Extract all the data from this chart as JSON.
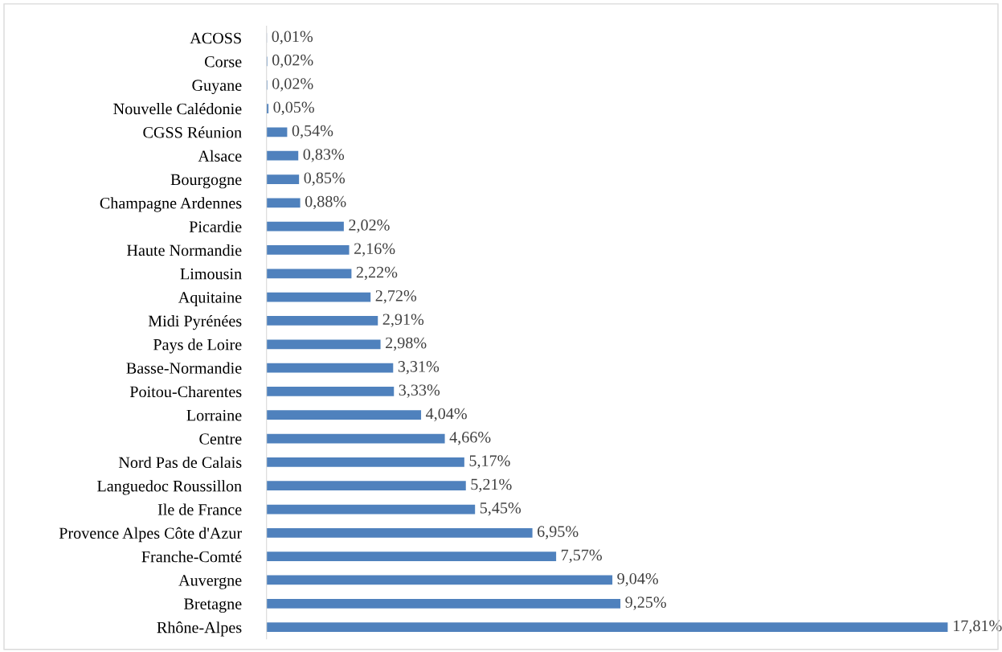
{
  "chart_data": {
    "type": "bar",
    "orientation": "horizontal",
    "color": "#4f81bd",
    "categories": [
      "ACOSS",
      "Corse",
      "Guyane",
      "Nouvelle Calédonie",
      "CGSS Réunion",
      "Alsace",
      "Bourgogne",
      "Champagne Ardennes",
      "Picardie",
      "Haute Normandie",
      "Limousin",
      "Aquitaine",
      "Midi Pyrénées",
      "Pays de Loire",
      "Basse-Normandie",
      "Poitou-Charentes",
      "Lorraine",
      "Centre",
      "Nord Pas de Calais",
      "Languedoc Roussillon",
      "Ile de France",
      "Provence Alpes Côte d'Azur",
      "Franche-Comté",
      "Auvergne",
      "Bretagne",
      "Rhône-Alpes"
    ],
    "values": [
      0.01,
      0.02,
      0.02,
      0.05,
      0.54,
      0.83,
      0.85,
      0.88,
      2.02,
      2.16,
      2.22,
      2.72,
      2.91,
      2.98,
      3.31,
      3.33,
      4.04,
      4.66,
      5.17,
      5.21,
      5.45,
      6.95,
      7.57,
      9.04,
      9.25,
      17.81
    ],
    "value_labels": [
      "0,01%",
      "0,02%",
      "0,02%",
      "0,05%",
      "0,54%",
      "0,83%",
      "0,85%",
      "0,88%",
      "2,02%",
      "2,16%",
      "2,22%",
      "2,72%",
      "2,91%",
      "2,98%",
      "3,31%",
      "3,33%",
      "4,04%",
      "4,66%",
      "5,17%",
      "5,21%",
      "5,45%",
      "6,95%",
      "7,57%",
      "9,04%",
      "9,25%",
      "17,81%"
    ],
    "grid": false,
    "legend": false
  }
}
